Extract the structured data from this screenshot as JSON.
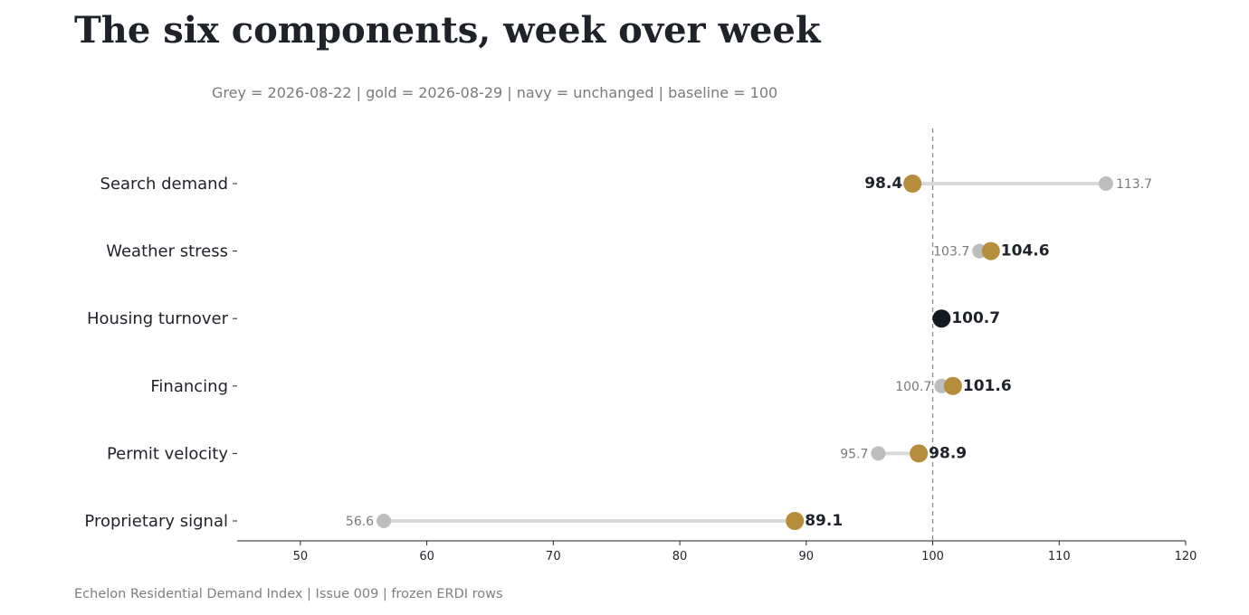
{
  "header": {
    "title": "The six components, week over week",
    "subtitle": "Grey = 2026-08-22  |  gold = 2026-08-29  |  navy = unchanged  |  baseline = 100"
  },
  "footer": {
    "text": "Echelon Residential Demand Index  |  Issue 009  |  frozen ERDI rows"
  },
  "colors": {
    "previous": "#bdbdbd",
    "current": "#b68d3c",
    "unchanged": "#131a22",
    "connector": "#d9d9d9",
    "baseline": "#8a8a8a"
  },
  "chart_data": {
    "type": "dumbbell",
    "categories": [
      "Search demand",
      "Weather stress",
      "Housing turnover",
      "Financing",
      "Permit velocity",
      "Proprietary signal"
    ],
    "series": [
      {
        "name": "2026-08-22",
        "values": [
          113.7,
          103.7,
          100.7,
          100.7,
          95.7,
          56.6
        ]
      },
      {
        "name": "2026-08-29",
        "values": [
          98.4,
          104.6,
          100.7,
          101.6,
          98.9,
          89.1
        ]
      }
    ],
    "previous_labels": [
      "113.7",
      "103.7",
      "",
      "100.7",
      "95.7",
      "56.6"
    ],
    "current_labels": [
      "98.4",
      "104.6",
      "100.7",
      "101.6",
      "98.9",
      "89.1"
    ],
    "unchanged": [
      false,
      false,
      true,
      false,
      false,
      false
    ],
    "baseline": 100,
    "xlim": [
      45,
      120
    ],
    "xticks": [
      50,
      60,
      70,
      80,
      90,
      100,
      110,
      120
    ],
    "xtick_labels": [
      "50",
      "60",
      "70",
      "80",
      "90",
      "100",
      "110",
      "120"
    ],
    "grid": false,
    "legend": "none"
  }
}
